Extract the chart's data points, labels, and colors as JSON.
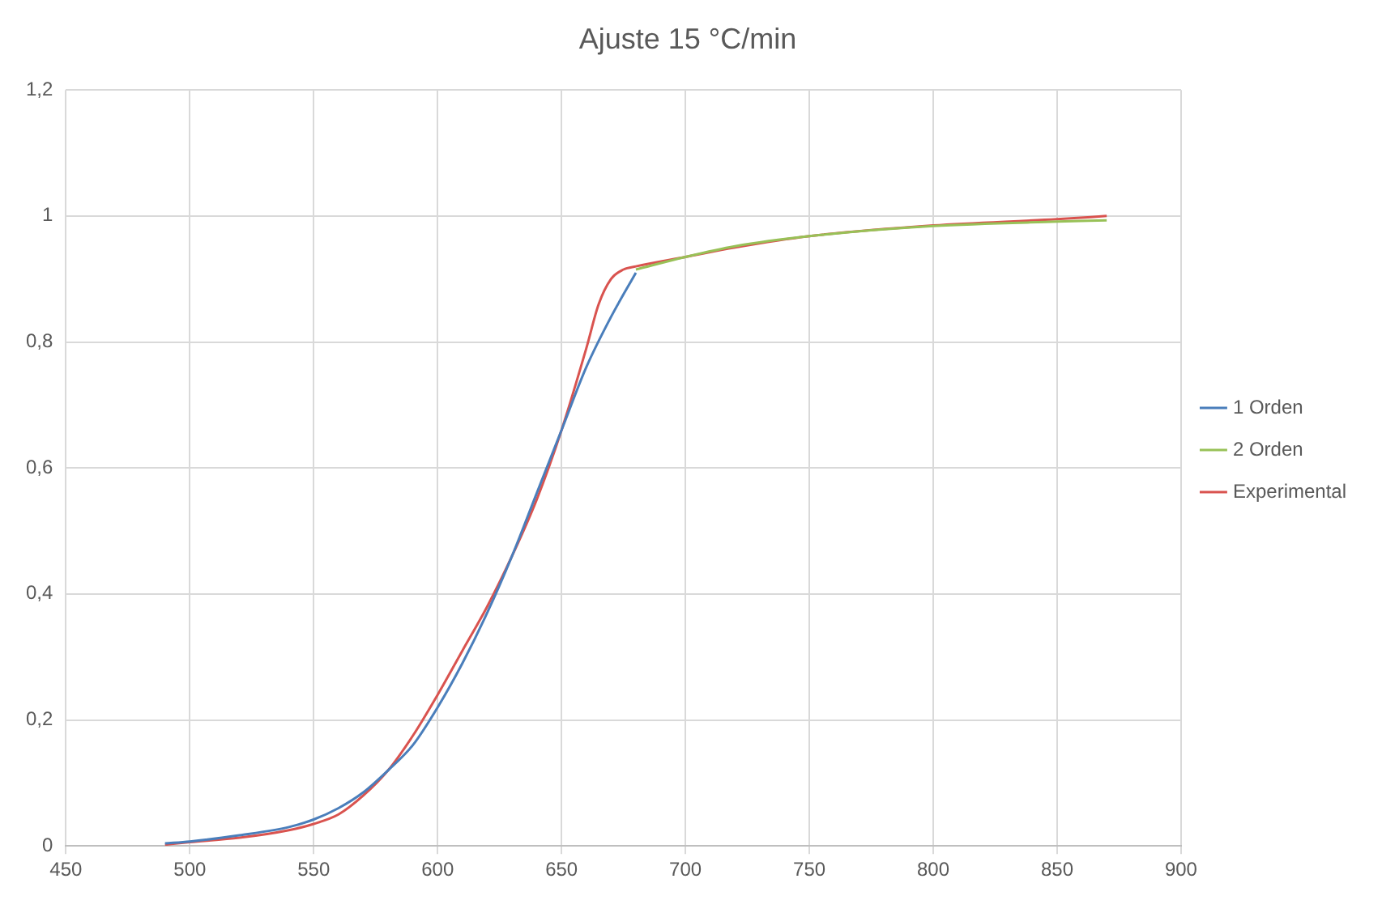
{
  "chart_data": {
    "type": "line",
    "title": "Ajuste 15 °C/min",
    "series": [
      {
        "name": "1 Orden",
        "color": "#4a7ebb",
        "x": [
          490,
          500,
          520,
          540,
          550,
          560,
          570,
          580,
          590,
          600,
          610,
          620,
          630,
          640,
          650,
          660,
          670,
          680
        ],
        "values": [
          0.004,
          0.007,
          0.017,
          0.03,
          0.042,
          0.06,
          0.085,
          0.12,
          0.16,
          0.22,
          0.29,
          0.37,
          0.46,
          0.56,
          0.66,
          0.76,
          0.84,
          0.91
        ]
      },
      {
        "name": "2 Orden",
        "color": "#98c157",
        "x": [
          680,
          700,
          720,
          750,
          800,
          850,
          870
        ],
        "values": [
          0.915,
          0.935,
          0.952,
          0.968,
          0.984,
          0.991,
          0.993
        ]
      },
      {
        "name": "Experimental",
        "color": "#d9534f",
        "x": [
          490,
          500,
          520,
          540,
          550,
          560,
          570,
          580,
          590,
          600,
          610,
          620,
          630,
          640,
          650,
          660,
          665,
          670,
          675,
          680,
          700,
          720,
          750,
          800,
          850,
          870
        ],
        "values": [
          0.002,
          0.006,
          0.013,
          0.025,
          0.035,
          0.05,
          0.08,
          0.12,
          0.175,
          0.24,
          0.31,
          0.38,
          0.46,
          0.55,
          0.66,
          0.79,
          0.86,
          0.9,
          0.915,
          0.92,
          0.935,
          0.95,
          0.968,
          0.985,
          0.995,
          1.0
        ]
      }
    ],
    "xlim": [
      450,
      900
    ],
    "xticks": [
      450,
      500,
      550,
      600,
      650,
      700,
      750,
      800,
      850,
      900
    ],
    "ylim": [
      0,
      1.2
    ],
    "yticks": [
      0,
      {
        "value": 0.2,
        "label": "0,2"
      },
      {
        "value": 0.4,
        "label": "0,4"
      },
      {
        "value": 0.6,
        "label": "0,6"
      },
      {
        "value": 0.8,
        "label": "0,8"
      },
      1,
      {
        "value": 1.2,
        "label": "1,2"
      }
    ],
    "grid": true,
    "legend": "right",
    "marker": "none",
    "line_style": "solid"
  }
}
